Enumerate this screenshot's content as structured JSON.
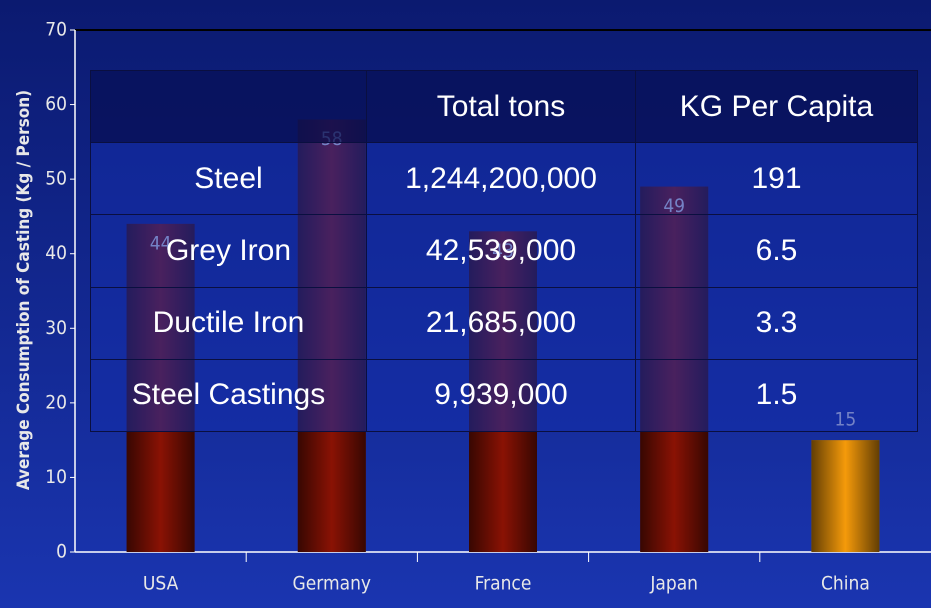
{
  "chart_data": {
    "type": "bar",
    "y_label": "Average Consumption of Casting  (Kg / Person)",
    "categories": [
      "USA",
      "Germany",
      "France",
      "Japan",
      "China"
    ],
    "values": [
      44,
      58,
      43,
      49,
      15
    ],
    "colors": [
      "#8a1204",
      "#8a1204",
      "#8a1204",
      "#8a1204",
      "#f59a0a"
    ],
    "ylim": [
      0,
      70
    ],
    "yticks": [
      0,
      10,
      20,
      30,
      40,
      50,
      60,
      70
    ]
  },
  "table": {
    "header": [
      "",
      "Total tons",
      "KG Per Capita"
    ],
    "rows": [
      [
        "Steel",
        "1,244,200,000",
        "191"
      ],
      [
        "Grey Iron",
        "42,539,000",
        "6.5"
      ],
      [
        "Ductile Iron",
        "21,685,000",
        "3.3"
      ],
      [
        "Steel Castings",
        "9,939,000",
        "1.5"
      ]
    ]
  }
}
